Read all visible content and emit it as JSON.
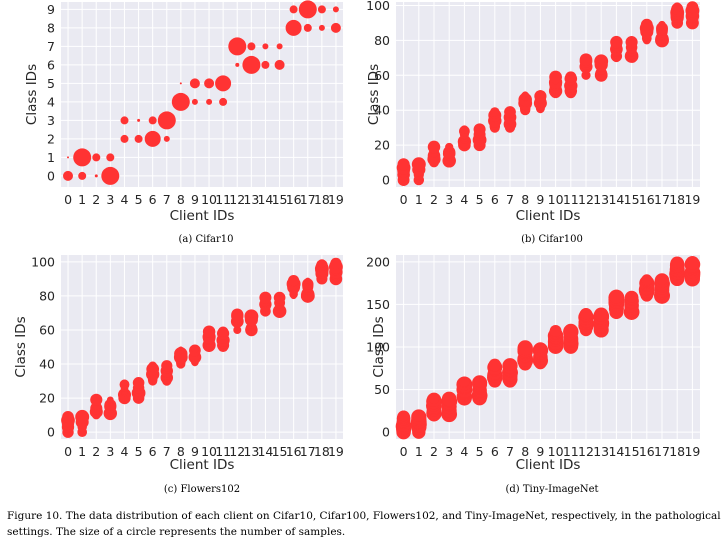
{
  "caption": "Figure 10. The data distribution of each client on Cifar10, Cifar100, Flowers102, and Tiny-ImageNet, respectively, in the pathological settings. The size of a circle represents the number of samples.",
  "colors": {
    "point": "#ff3333",
    "panel_bg": "#eaeaf2",
    "grid": "#ffffff"
  },
  "chart_data": [
    {
      "type": "scatter",
      "subcaption": "(a) Cifar10",
      "xlabel": "Client IDs",
      "ylabel": "Class IDs",
      "xlim": [
        -0.5,
        19.5
      ],
      "ylim": [
        -0.6,
        9.4
      ],
      "xticks": [
        0,
        1,
        2,
        3,
        4,
        5,
        6,
        7,
        8,
        9,
        10,
        11,
        12,
        13,
        14,
        15,
        16,
        17,
        18,
        19
      ],
      "yticks": [
        0,
        1,
        2,
        3,
        4,
        5,
        6,
        7,
        8,
        9
      ],
      "grid": true,
      "points": [
        {
          "x": 0,
          "y": 0,
          "r": 5
        },
        {
          "x": 0,
          "y": 1,
          "r": 1
        },
        {
          "x": 1,
          "y": 0,
          "r": 4
        },
        {
          "x": 1,
          "y": 1,
          "r": 9
        },
        {
          "x": 2,
          "y": 0,
          "r": 1.5
        },
        {
          "x": 2,
          "y": 1,
          "r": 4
        },
        {
          "x": 3,
          "y": 0,
          "r": 9
        },
        {
          "x": 3,
          "y": 1,
          "r": 4
        },
        {
          "x": 4,
          "y": 2,
          "r": 4
        },
        {
          "x": 4,
          "y": 3,
          "r": 4
        },
        {
          "x": 5,
          "y": 2,
          "r": 4
        },
        {
          "x": 5,
          "y": 3,
          "r": 1.5
        },
        {
          "x": 6,
          "y": 2,
          "r": 8
        },
        {
          "x": 6,
          "y": 3,
          "r": 4
        },
        {
          "x": 7,
          "y": 2,
          "r": 3
        },
        {
          "x": 7,
          "y": 3,
          "r": 9
        },
        {
          "x": 8,
          "y": 4,
          "r": 9
        },
        {
          "x": 8,
          "y": 5,
          "r": 1
        },
        {
          "x": 9,
          "y": 4,
          "r": 3
        },
        {
          "x": 9,
          "y": 5,
          "r": 5
        },
        {
          "x": 10,
          "y": 4,
          "r": 3
        },
        {
          "x": 10,
          "y": 5,
          "r": 5
        },
        {
          "x": 11,
          "y": 4,
          "r": 4
        },
        {
          "x": 11,
          "y": 5,
          "r": 8
        },
        {
          "x": 12,
          "y": 6,
          "r": 2
        },
        {
          "x": 12,
          "y": 7,
          "r": 9
        },
        {
          "x": 13,
          "y": 6,
          "r": 9
        },
        {
          "x": 13,
          "y": 7,
          "r": 4
        },
        {
          "x": 14,
          "y": 6,
          "r": 4
        },
        {
          "x": 14,
          "y": 7,
          "r": 3
        },
        {
          "x": 15,
          "y": 6,
          "r": 5
        },
        {
          "x": 15,
          "y": 7,
          "r": 3
        },
        {
          "x": 16,
          "y": 8,
          "r": 8
        },
        {
          "x": 16,
          "y": 9,
          "r": 4
        },
        {
          "x": 17,
          "y": 8,
          "r": 4
        },
        {
          "x": 17,
          "y": 9,
          "r": 9
        },
        {
          "x": 18,
          "y": 8,
          "r": 3
        },
        {
          "x": 18,
          "y": 9,
          "r": 4
        },
        {
          "x": 19,
          "y": 8,
          "r": 5
        },
        {
          "x": 19,
          "y": 9,
          "r": 3
        }
      ]
    },
    {
      "type": "scatter",
      "subcaption": "(b) Cifar100",
      "xlabel": "Client IDs",
      "ylabel": "Class IDs",
      "xlim": [
        -0.5,
        19.5
      ],
      "ylim": [
        -4,
        102
      ],
      "xticks": [
        0,
        1,
        2,
        3,
        4,
        5,
        6,
        7,
        8,
        9,
        10,
        11,
        12,
        13,
        14,
        15,
        16,
        17,
        18,
        19
      ],
      "yticks": [
        0,
        20,
        40,
        60,
        80,
        100
      ],
      "grid": true,
      "points_rule": {
        "classes_per_client": 10,
        "class_stride_per_two_clients": 10,
        "radius_min": 3,
        "radius_max": 7
      }
    },
    {
      "type": "scatter",
      "subcaption": "(c) Flowers102",
      "xlabel": "Client IDs",
      "ylabel": "Class IDs",
      "xlim": [
        -0.5,
        19.5
      ],
      "ylim": [
        -4,
        104
      ],
      "xticks": [
        0,
        1,
        2,
        3,
        4,
        5,
        6,
        7,
        8,
        9,
        10,
        11,
        12,
        13,
        14,
        15,
        16,
        17,
        18,
        19
      ],
      "yticks": [
        0,
        20,
        40,
        60,
        80,
        100
      ],
      "grid": true,
      "points_rule": {
        "classes_per_client": 10,
        "class_stride_per_two_clients": 10,
        "radius_min": 2,
        "radius_max": 7
      }
    },
    {
      "type": "scatter",
      "subcaption": "(d) Tiny-ImageNet",
      "xlabel": "Client IDs",
      "ylabel": "Class IDs",
      "xlim": [
        -0.5,
        19.5
      ],
      "ylim": [
        -8,
        208
      ],
      "xticks": [
        0,
        1,
        2,
        3,
        4,
        5,
        6,
        7,
        8,
        9,
        10,
        11,
        12,
        13,
        14,
        15,
        16,
        17,
        18,
        19
      ],
      "yticks": [
        0,
        50,
        100,
        150,
        200
      ],
      "grid": true,
      "points_rule": {
        "classes_per_client": 20,
        "class_stride_per_two_clients": 20,
        "radius_min": 5,
        "radius_max": 8
      }
    }
  ]
}
